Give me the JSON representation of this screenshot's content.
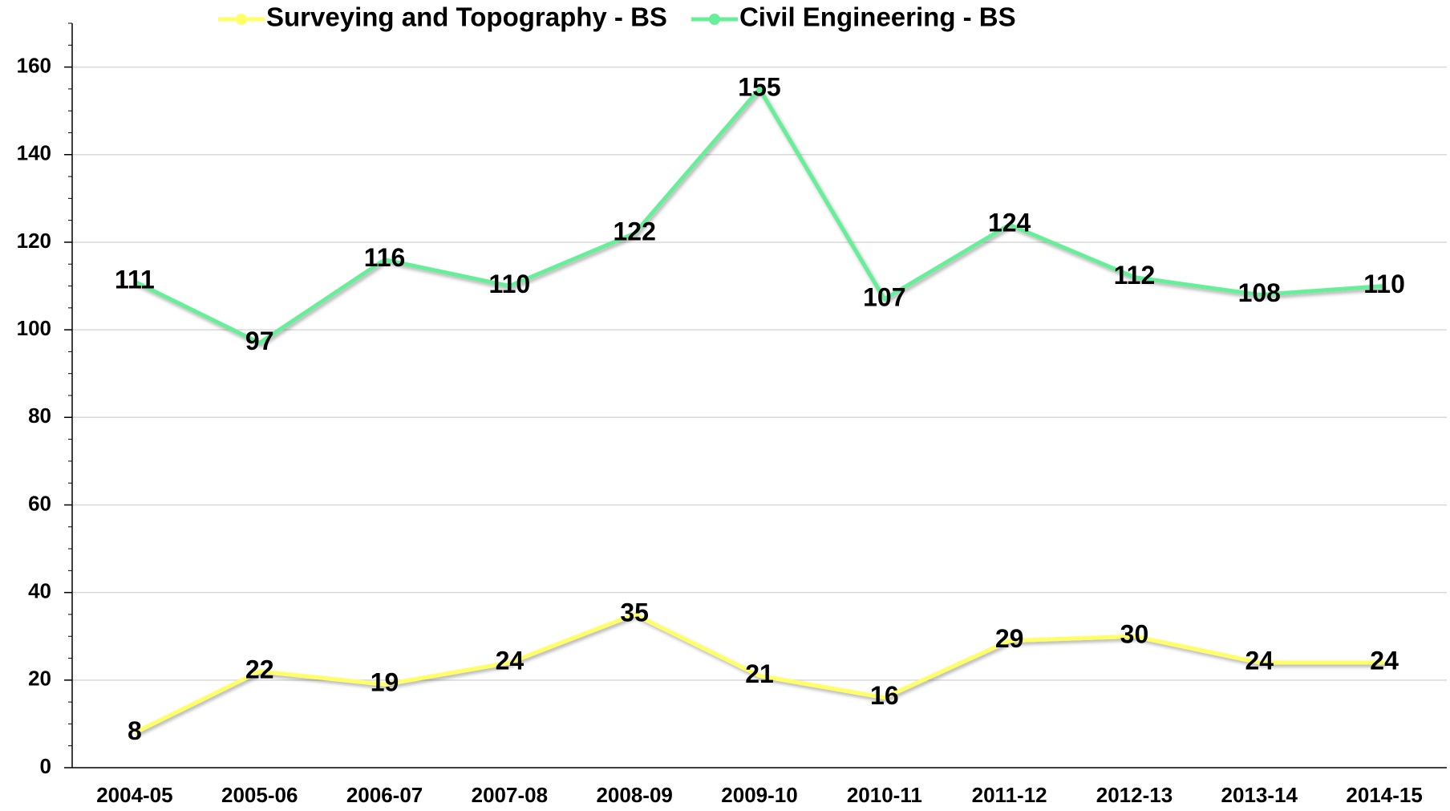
{
  "chart_data": {
    "type": "line",
    "categories": [
      "2004-05",
      "2005-06",
      "2006-07",
      "2007-08",
      "2008-09",
      "2009-10",
      "2010-11",
      "2011-12",
      "2012-13",
      "2013-14",
      "2014-15"
    ],
    "series": [
      {
        "name": "Surveying and Topography - BS",
        "color": "#ffff66",
        "values": [
          8,
          22,
          19,
          24,
          35,
          21,
          16,
          29,
          30,
          24,
          24
        ]
      },
      {
        "name": "Civil Engineering - BS",
        "color": "#66ee99",
        "values": [
          111,
          97,
          116,
          110,
          122,
          155,
          107,
          124,
          112,
          108,
          110
        ]
      }
    ],
    "ylim": [
      0,
      170
    ],
    "yticks": [
      0,
      20,
      40,
      60,
      80,
      100,
      120,
      140,
      160
    ],
    "grid": true,
    "legend": "top"
  }
}
